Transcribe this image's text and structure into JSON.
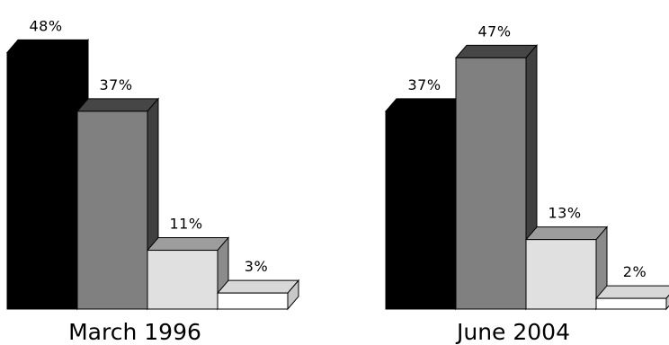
{
  "chart_data": [
    {
      "type": "bar",
      "title": "March 1996",
      "categories": [
        "",
        "",
        "",
        ""
      ],
      "values": [
        48,
        37,
        11,
        3
      ],
      "value_labels": [
        "48%",
        "37%",
        "11%",
        "3%"
      ],
      "bar_colors": [
        "#000000",
        "#808080",
        "#e0e0e0",
        "#ffffff"
      ],
      "ylim": [
        0,
        50
      ],
      "grid": false,
      "style": "3d-bars"
    },
    {
      "type": "bar",
      "title": "June 2004",
      "categories": [
        "",
        "",
        "",
        ""
      ],
      "values": [
        37,
        47,
        13,
        2
      ],
      "value_labels": [
        "37%",
        "47%",
        "13%",
        "2%"
      ],
      "bar_colors": [
        "#000000",
        "#808080",
        "#e0e0e0",
        "#ffffff"
      ],
      "ylim": [
        0,
        50
      ],
      "grid": false,
      "style": "3d-bars"
    }
  ]
}
